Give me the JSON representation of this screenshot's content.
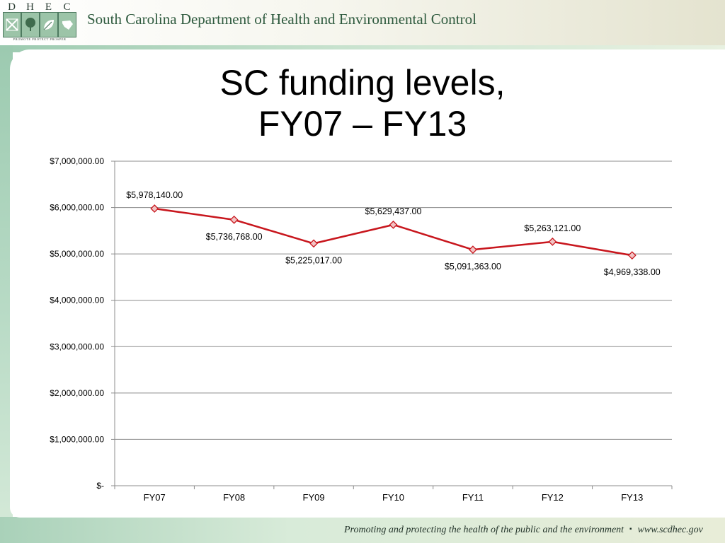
{
  "header": {
    "logo_letters": [
      "D",
      "H",
      "E",
      "C"
    ],
    "logo_tagline": "PROMOTE PROTECT PROSPER",
    "org_name": "South Carolina Department of Health and Environmental Control"
  },
  "slide": {
    "title_line1": "SC funding levels,",
    "title_line2": "FY07 – FY13"
  },
  "footer": {
    "tagline": "Promoting and protecting the health of the public and the environment",
    "separator": "▪",
    "url": "www.scdhec.gov"
  },
  "colors": {
    "series_line": "#c8161d",
    "marker_fill": "#f2c4c4",
    "gridline": "#8c8c8c",
    "brand_green": "#2e5a3e"
  },
  "chart_data": {
    "type": "line",
    "title": "",
    "xlabel": "",
    "ylabel": "",
    "categories": [
      "FY07",
      "FY08",
      "FY09",
      "FY10",
      "FY11",
      "FY12",
      "FY13"
    ],
    "series": [
      {
        "values": [
          5978140,
          5736768,
          5225017,
          5629437,
          5091363,
          5263121,
          4969338
        ],
        "data_labels": [
          "$5,978,140.00",
          "$5,736,768.00",
          "$5,225,017.00",
          "$5,629,437.00",
          "$5,091,363.00",
          "$5,263,121.00",
          "$4,969,338.00"
        ],
        "data_label_side": [
          "above",
          "below",
          "below",
          "above",
          "below",
          "above",
          "below"
        ],
        "marker": "diamond"
      }
    ],
    "ylim": [
      0,
      7000000
    ],
    "y_ticks": [
      0,
      1000000,
      2000000,
      3000000,
      4000000,
      5000000,
      6000000,
      7000000
    ],
    "y_tick_labels": [
      "$-",
      "$1,000,000.00",
      "$2,000,000.00",
      "$3,000,000.00",
      "$4,000,000.00",
      "$5,000,000.00",
      "$6,000,000.00",
      "$7,000,000.00"
    ],
    "grid": true,
    "legend": "none"
  }
}
